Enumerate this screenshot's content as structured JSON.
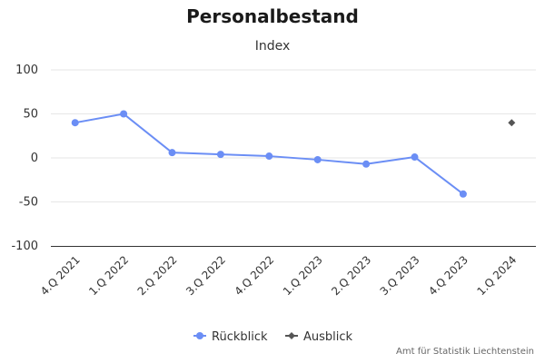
{
  "chart_data": {
    "type": "line",
    "title": "Personalbestand",
    "subtitle": "Index",
    "categories": [
      "4.Q 2021",
      "1.Q 2022",
      "2.Q 2022",
      "3.Q 2022",
      "4.Q 2022",
      "1.Q 2023",
      "2.Q 2023",
      "3.Q 2023",
      "4.Q 2023",
      "1.Q 2024"
    ],
    "y_ticks": [
      100,
      50,
      0,
      -50,
      -100
    ],
    "ylim": [
      -100,
      100
    ],
    "grid": true,
    "legend_position": "bottom-center",
    "series": [
      {
        "name": "Rückblick",
        "color": "#6b8ef5",
        "marker": "circle",
        "values": [
          40,
          50,
          6,
          4,
          2,
          -2,
          -7,
          1,
          -41,
          null
        ]
      },
      {
        "name": "Ausblick",
        "color": "#555555",
        "marker": "diamond",
        "values": [
          null,
          null,
          null,
          null,
          null,
          null,
          null,
          null,
          null,
          40
        ]
      }
    ]
  },
  "credits": "Amt für Statistik Liechtenstein"
}
